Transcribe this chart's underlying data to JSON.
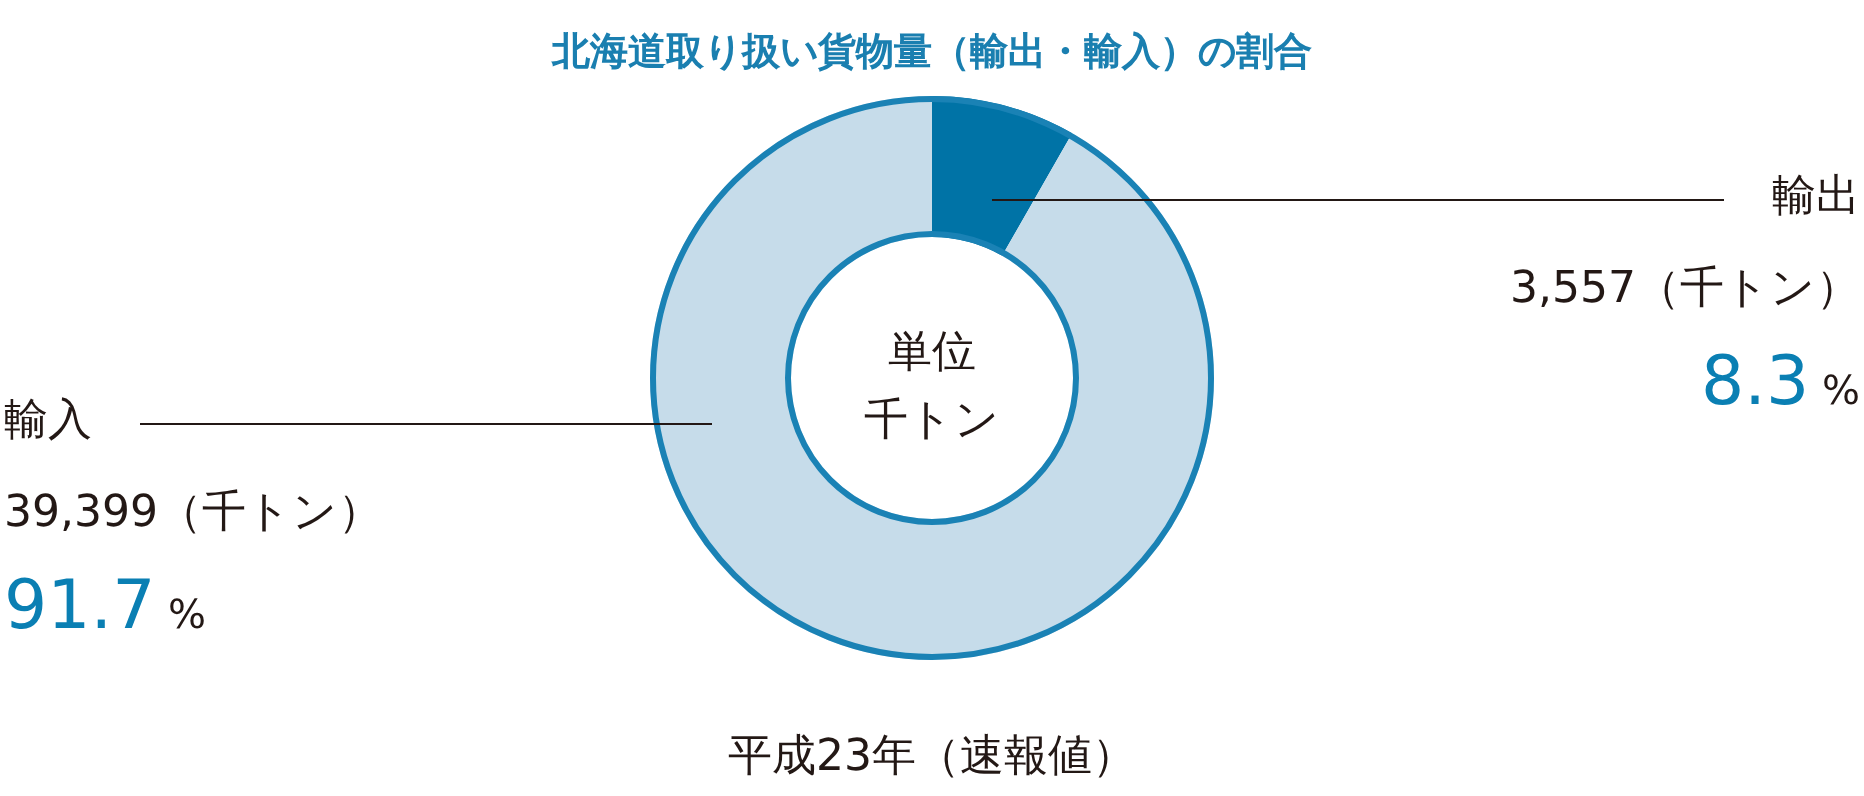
{
  "chart_data": {
    "type": "donut",
    "title": "北海道取り扱い貨物量（輸出・輸入）の割合",
    "categories": [
      "輸出",
      "輸入"
    ],
    "values": [
      3557,
      39399
    ],
    "colors": [
      "#0073a6",
      "#c6dcea"
    ],
    "value_labels": [
      "3,557（千トン）",
      "39,399（千トン）"
    ],
    "annotations": [
      "単位",
      "千トン",
      "平成23年（速報値）",
      {
        "text": "8.3 %",
        "x": "輸出"
      },
      {
        "text": "91.7 %",
        "x": "輸入"
      }
    ],
    "legend": false
  }
}
